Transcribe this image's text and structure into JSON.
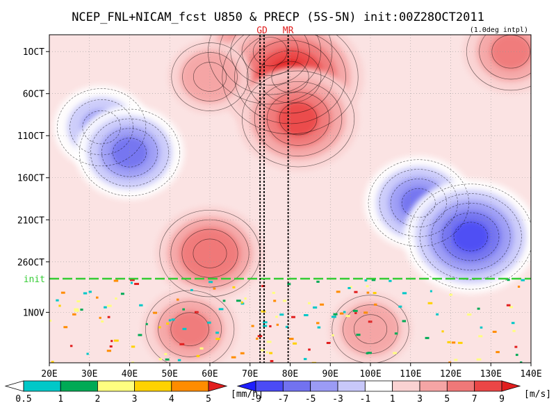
{
  "chart_data": {
    "type": "heatmap",
    "title": "NCEP_FNL+NICAM_fcst U850 & PRECP (5S-5N) init:00Z28OCT2011",
    "subtitle": "(1.0deg intpl)",
    "x_axis": {
      "range": [
        20,
        140
      ],
      "ticks": [
        {
          "value": 20,
          "label": "20E"
        },
        {
          "value": 30,
          "label": "30E"
        },
        {
          "value": 40,
          "label": "40E"
        },
        {
          "value": 50,
          "label": "50E"
        },
        {
          "value": 60,
          "label": "60E"
        },
        {
          "value": 70,
          "label": "70E"
        },
        {
          "value": 80,
          "label": "80E"
        },
        {
          "value": 90,
          "label": "90E"
        },
        {
          "value": 100,
          "label": "100E"
        },
        {
          "value": 110,
          "label": "110E"
        },
        {
          "value": 120,
          "label": "120E"
        },
        {
          "value": 130,
          "label": "130E"
        },
        {
          "value": 140,
          "label": "140E"
        }
      ]
    },
    "y_axis": {
      "direction": "time increases downward",
      "range": [
        "2011-09-29",
        "2011-11-07"
      ],
      "ticks": [
        {
          "value": "2011-10-01",
          "label": "1OCT"
        },
        {
          "value": "2011-10-06",
          "label": "6OCT"
        },
        {
          "value": "2011-10-11",
          "label": "11OCT"
        },
        {
          "value": "2011-10-16",
          "label": "16OCT"
        },
        {
          "value": "2011-10-21",
          "label": "21OCT"
        },
        {
          "value": "2011-10-26",
          "label": "26OCT"
        },
        {
          "value": "2011-11-01",
          "label": "1NOV"
        }
      ]
    },
    "init_line": {
      "date": "2011-10-28",
      "label": "init",
      "color": "#33cc33"
    },
    "reference_lines": [
      {
        "label": "GD",
        "x": [
          72.5,
          73.5
        ]
      },
      {
        "label": "MR",
        "x": [
          79.5
        ]
      }
    ],
    "u850_shading": {
      "units": "[m/s]",
      "levels": [
        "-9",
        "-7",
        "-5",
        "-3",
        "-1",
        "1",
        "3",
        "5",
        "7",
        "9"
      ],
      "colors": [
        "#1e1eff",
        "#4b4bf5",
        "#7272f0",
        "#9b9bf5",
        "#c8c8fa",
        "#ffffff",
        "#fad2d2",
        "#f5a5a5",
        "#f07878",
        "#eb4646",
        "#e11e1e"
      ]
    },
    "precip_shading": {
      "units": "[mm/h]",
      "levels": [
        "0.5",
        "1",
        "2",
        "3",
        "4",
        "5"
      ],
      "colors": [
        "#ffffff",
        "#00c8c8",
        "#00aa55",
        "#ffff80",
        "#ffd200",
        "#ff8c00",
        "#e11e1e"
      ]
    },
    "zonal_wind_features": [
      {
        "lon": 75,
        "date": "2011-10-01",
        "value": 8
      },
      {
        "lon": 80,
        "date": "2011-10-04",
        "value": 9
      },
      {
        "lon": 82,
        "date": "2011-10-09",
        "value": 7
      },
      {
        "lon": 60,
        "date": "2011-10-04",
        "value": 4
      },
      {
        "lon": 33,
        "date": "2011-10-10",
        "value": -5
      },
      {
        "lon": 40,
        "date": "2011-10-13",
        "value": -6
      },
      {
        "lon": 112,
        "date": "2011-10-19",
        "value": -6
      },
      {
        "lon": 125,
        "date": "2011-10-23",
        "value": -8
      },
      {
        "lon": 60,
        "date": "2011-10-25",
        "value": 6
      },
      {
        "lon": 55,
        "date": "2011-11-03",
        "value": 5
      },
      {
        "lon": 100,
        "date": "2011-11-03",
        "value": 4
      },
      {
        "lon": 135,
        "date": "2011-10-01",
        "value": 5
      }
    ],
    "grid": true
  }
}
